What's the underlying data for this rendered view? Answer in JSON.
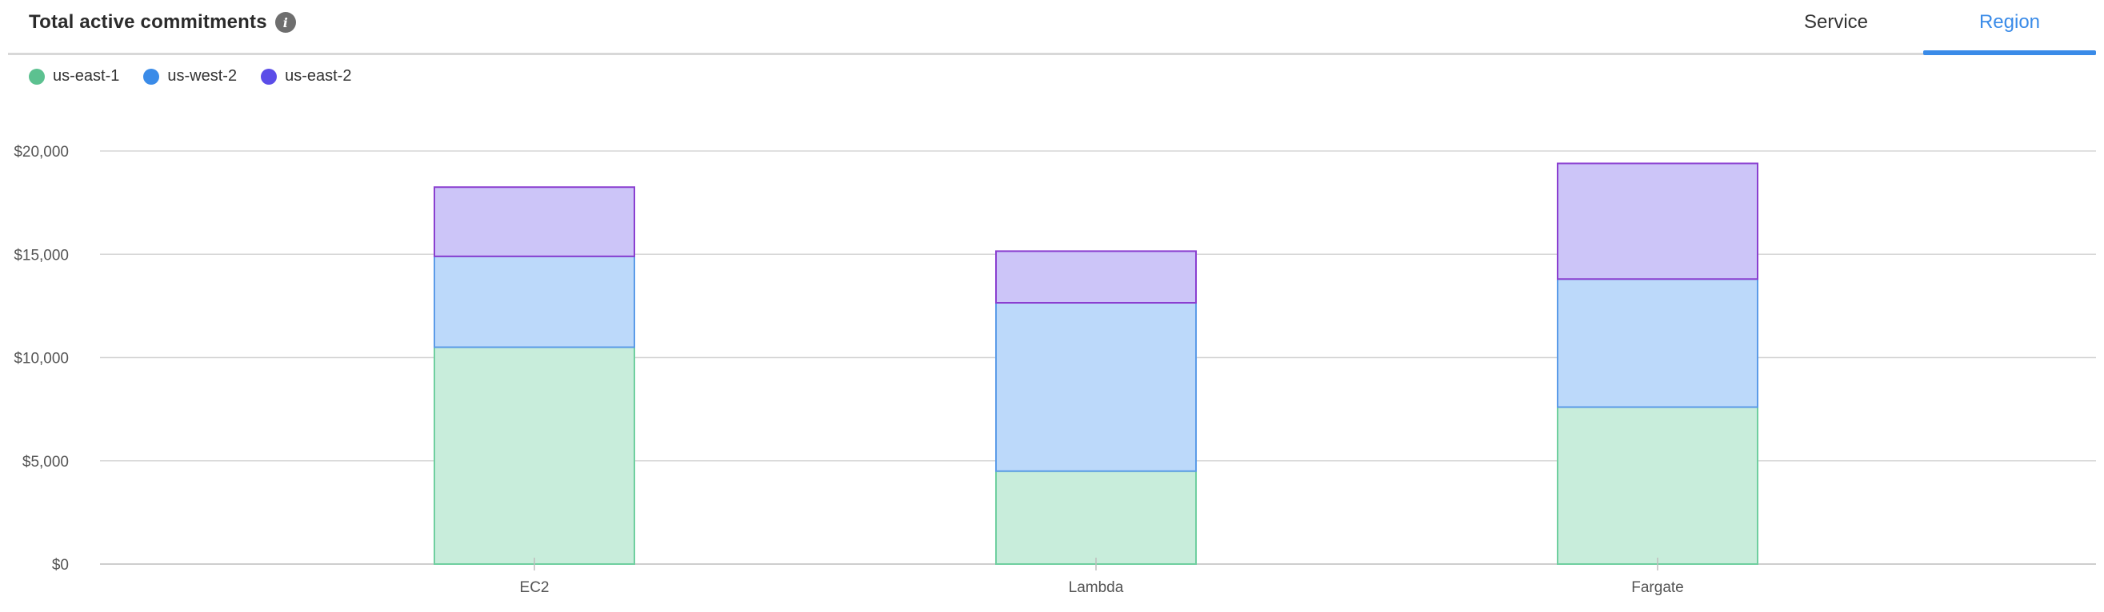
{
  "header": {
    "title": "Total active commitments",
    "info_icon": "info-icon",
    "tabs": [
      {
        "label": "Service",
        "active": false
      },
      {
        "label": "Region",
        "active": true
      }
    ],
    "accent_color": "#3a8be8"
  },
  "legend": {
    "items": [
      {
        "label": "us-east-1",
        "color": "#5cc190"
      },
      {
        "label": "us-west-2",
        "color": "#3a8be8"
      },
      {
        "label": "us-east-2",
        "color": "#5b4de8"
      }
    ]
  },
  "chart_data": {
    "type": "bar",
    "stacked": true,
    "categories": [
      "EC2",
      "Lambda",
      "Fargate"
    ],
    "series": [
      {
        "name": "us-east-1",
        "values": [
          10500,
          4500,
          7600
        ],
        "fill": "#c8eddb",
        "stroke": "#6fcf9f"
      },
      {
        "name": "us-west-2",
        "values": [
          4400,
          8150,
          6200
        ],
        "fill": "#bcd9fa",
        "stroke": "#5b9be8"
      },
      {
        "name": "us-east-2",
        "values": [
          3350,
          2500,
          5600
        ],
        "fill": "#ccc5f8",
        "stroke": "#8a3fd0"
      }
    ],
    "ylim": [
      0,
      20000
    ],
    "yticks": [
      0,
      5000,
      10000,
      15000,
      20000
    ],
    "ytick_labels": [
      "$0",
      "$5,000",
      "$10,000",
      "$15,000",
      "$20,000"
    ],
    "grid": true,
    "legend_position": "top-left",
    "title": "",
    "xlabel": "",
    "ylabel": ""
  }
}
